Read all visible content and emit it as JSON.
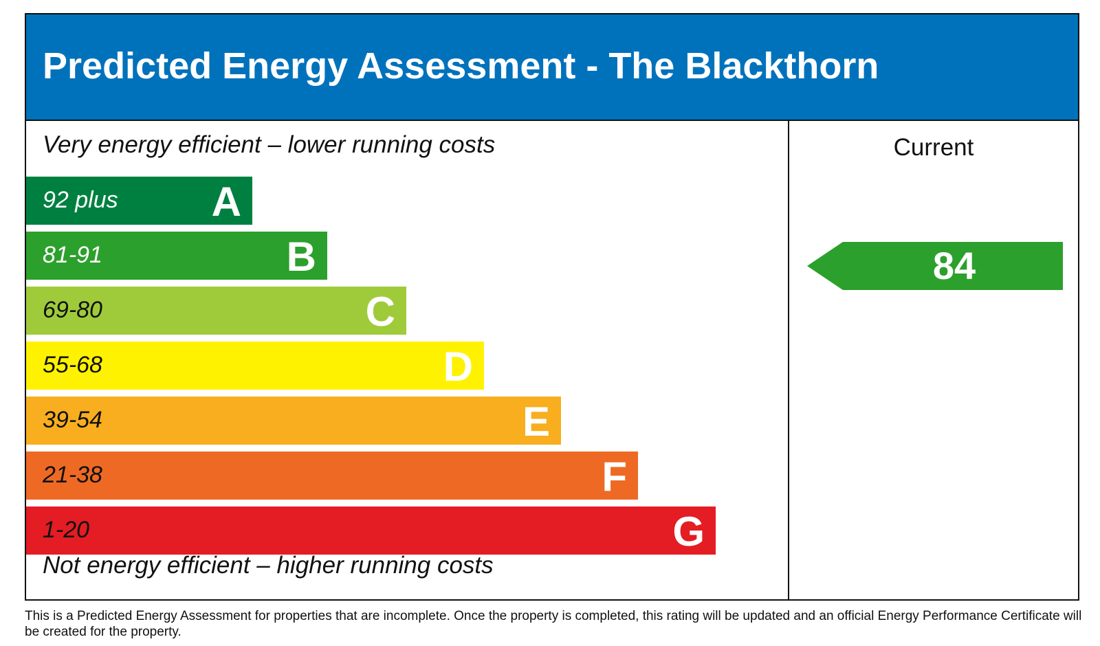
{
  "title": "Predicted Energy Assessment - The Blackthorn",
  "top_text": "Very energy efficient – lower running costs",
  "bottom_text": "Not energy efficient – higher running costs",
  "column_header": "Current",
  "footer": "This is a Predicted Energy Assessment for properties that are incomplete. Once the property is completed, this rating will be updated and an official Energy Performance Certificate will be created for the property.",
  "chart_data": {
    "type": "bar",
    "title": "Predicted Energy Assessment - The Blackthorn",
    "categories": [
      "A",
      "B",
      "C",
      "D",
      "E",
      "F",
      "G"
    ],
    "bands": [
      {
        "letter": "A",
        "range": "92 plus",
        "color": "#008040",
        "text_color": "#ffffff"
      },
      {
        "letter": "B",
        "range": "81-91",
        "color": "#2ca02c",
        "text_color": "#ffffff"
      },
      {
        "letter": "C",
        "range": "69-80",
        "color": "#9fcb3b",
        "text_color": "#111111"
      },
      {
        "letter": "D",
        "range": "55-68",
        "color": "#fff200",
        "text_color": "#111111"
      },
      {
        "letter": "E",
        "range": "39-54",
        "color": "#f8ae1e",
        "text_color": "#111111"
      },
      {
        "letter": "F",
        "range": "21-38",
        "color": "#ee6a24",
        "text_color": "#111111"
      },
      {
        "letter": "G",
        "range": "1-20",
        "color": "#e31d23",
        "text_color": "#111111"
      }
    ],
    "current": {
      "value": "84",
      "band": "B",
      "color": "#2ca02c"
    }
  }
}
